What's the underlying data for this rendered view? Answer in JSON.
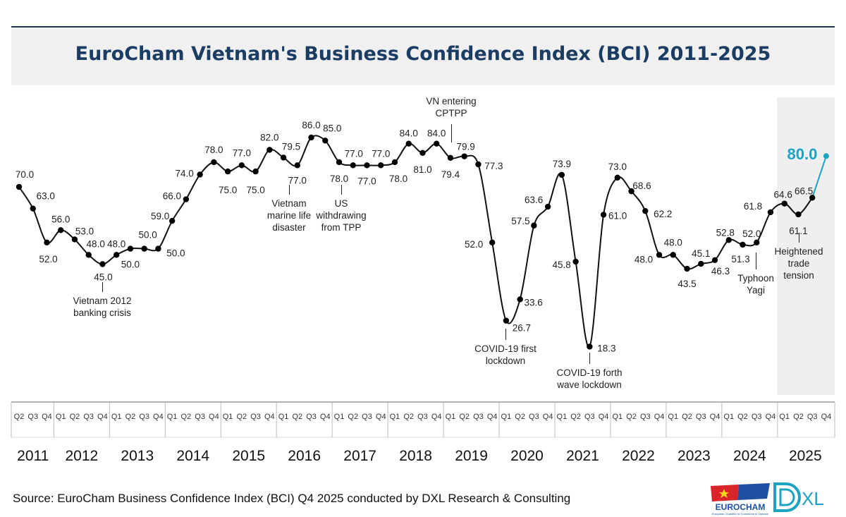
{
  "title": "EuroCham Vietnam's Business Confidence Index (BCI) 2011-2025",
  "source": "Source: EuroCham Business Confidence Index (BCI) Q4 2025 conducted by DXL Research & Consulting",
  "logos": {
    "eurocham": "EUROCHAM",
    "eurocham_sub": "European Chamber of Commerce in Vietnam",
    "dxl": "XL"
  },
  "colors": {
    "line": "#111111",
    "highlight": "#1aa3c2",
    "title": "#1c3d63",
    "highlight_band": "#efefef"
  },
  "annotations": [
    {
      "id": "banking",
      "lines": [
        "Vietnam 2012",
        "banking crisis"
      ]
    },
    {
      "id": "marine",
      "lines": [
        "Vietnam",
        "marine life",
        "disaster"
      ]
    },
    {
      "id": "tpp",
      "lines": [
        "US",
        "withdrawing",
        "from TPP"
      ]
    },
    {
      "id": "cptpp",
      "lines": [
        "VN entering",
        "CPTPP"
      ]
    },
    {
      "id": "covid1",
      "lines": [
        "COVID-19 first",
        "lockdown"
      ]
    },
    {
      "id": "covid4",
      "lines": [
        "COVID-19 forth",
        "wave lockdown"
      ]
    },
    {
      "id": "yagi",
      "lines": [
        "Typhoon",
        "Yagi"
      ]
    },
    {
      "id": "trade",
      "lines": [
        "Heightened",
        "trade",
        "tension"
      ]
    }
  ],
  "chart_data": {
    "type": "line",
    "title": "EuroCham Vietnam's Business Confidence Index (BCI) 2011-2025",
    "xlabel": "",
    "ylabel": "",
    "grid": false,
    "legend": "none",
    "highlight_last": true,
    "years": [
      "2011",
      "2012",
      "2013",
      "2014",
      "2015",
      "2016",
      "2017",
      "2018",
      "2019",
      "2020",
      "2021",
      "2022",
      "2023",
      "2024",
      "2025"
    ],
    "categories": [
      "2011 Q2",
      "2011 Q3",
      "2011 Q4",
      "2012 Q1",
      "2012 Q2",
      "2012 Q3",
      "2012 Q4",
      "2013 Q1",
      "2013 Q2",
      "2013 Q3",
      "2013 Q4",
      "2014 Q1",
      "2014 Q2",
      "2014 Q3",
      "2014 Q4",
      "2015 Q1",
      "2015 Q2",
      "2015 Q3",
      "2015 Q4",
      "2016 Q1",
      "2016 Q2",
      "2016 Q3",
      "2016 Q4",
      "2017 Q1",
      "2017 Q2",
      "2017 Q3",
      "2017 Q4",
      "2018 Q1",
      "2018 Q2",
      "2018 Q3",
      "2018 Q4",
      "2019 Q1",
      "2019 Q2",
      "2019 Q3",
      "2019 Q4",
      "2020 Q1",
      "2020 Q2",
      "2020 Q3",
      "2020 Q4",
      "2021 Q1",
      "2021 Q2",
      "2021 Q3",
      "2021 Q4",
      "2022 Q1",
      "2022 Q2",
      "2022 Q3",
      "2022 Q4",
      "2023 Q1",
      "2023 Q2",
      "2023 Q3",
      "2023 Q4",
      "2024 Q1",
      "2024 Q2",
      "2024 Q3",
      "2024 Q4",
      "2025 Q1",
      "2025 Q2",
      "2025 Q3",
      "2025 Q4"
    ],
    "values": [
      70.0,
      63.0,
      52.0,
      56.0,
      53.0,
      48.0,
      45.0,
      48.0,
      50.0,
      50.0,
      50.0,
      59.0,
      66.0,
      74.0,
      78.0,
      75.0,
      77.0,
      75.0,
      82.0,
      79.5,
      77.0,
      86.0,
      85.0,
      78.0,
      77.0,
      77.0,
      77.0,
      78.0,
      84.0,
      81.0,
      84.0,
      79.4,
      79.9,
      77.3,
      52.0,
      26.7,
      33.6,
      57.5,
      63.6,
      73.9,
      45.8,
      18.3,
      61.0,
      73.0,
      68.6,
      62.2,
      48.0,
      48.0,
      43.5,
      45.1,
      46.3,
      52.8,
      51.3,
      52.0,
      61.8,
      64.6,
      61.1,
      66.5,
      80.0
    ]
  }
}
